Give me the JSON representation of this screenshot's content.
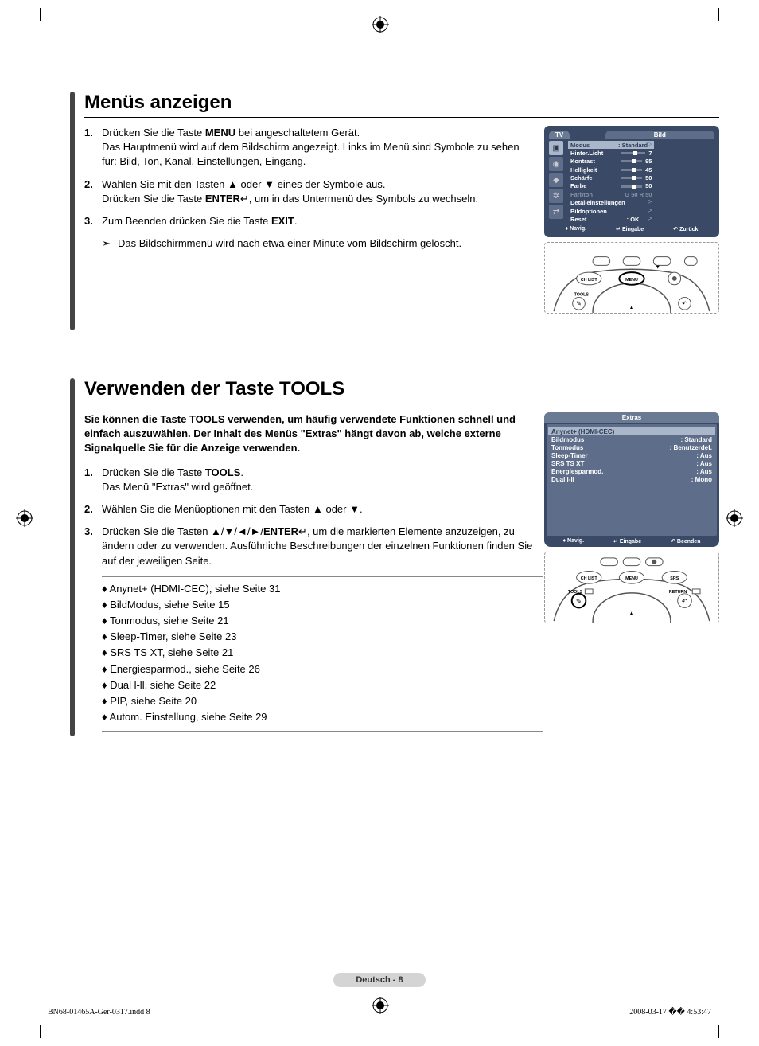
{
  "section1": {
    "title": "Menüs anzeigen",
    "steps": [
      {
        "num": "1.",
        "text": "Drücken Sie die Taste <b>MENU</b> bei angeschaltetem Gerät.<br>Das Hauptmenü wird auf dem Bildschirm angezeigt. Links im Menü sind Symbole zu sehen für: Bild, Ton, Kanal, Einstellungen, Eingang."
      },
      {
        "num": "2.",
        "text": "Wählen Sie mit den Tasten ▲ oder ▼ eines der Symbole aus.<br>Drücken Sie die Taste <b>ENTER</b>↵, um in das Untermenü des Symbols zu wechseln."
      },
      {
        "num": "3.",
        "text": "Zum Beenden drücken Sie die Taste <b>EXIT</b>."
      }
    ],
    "note": "Das Bildschirmmenü wird nach etwa einer Minute vom Bildschirm gelöscht.",
    "osd": {
      "tab_left": "TV",
      "tab_right": "Bild",
      "rows": [
        {
          "label": "Modus",
          "value": ": Standard",
          "selected": true,
          "arrow": true
        },
        {
          "label": "Hinter.Licht",
          "slider": true,
          "value": "7"
        },
        {
          "label": "Kontrast",
          "slider": true,
          "value": "95"
        },
        {
          "label": "Helligkeit",
          "slider": true,
          "value": "45"
        },
        {
          "label": "Schärfe",
          "slider": true,
          "value": "50"
        },
        {
          "label": "Farbe",
          "slider": true,
          "value": "50"
        },
        {
          "label": "Farbton",
          "value": "G 50             R 50",
          "dim": true
        },
        {
          "label": "Detaileinstellungen",
          "value": "",
          "arrow": true
        },
        {
          "label": "Bildoptionen",
          "value": "",
          "arrow": true
        },
        {
          "label": "Reset",
          "value": ": OK",
          "arrow": true
        }
      ],
      "footer": {
        "nav": "Navig.",
        "enter": "Eingabe",
        "back": "Zurück"
      }
    }
  },
  "section2": {
    "title": "Verwenden der Taste TOOLS",
    "intro": "Sie können die Taste TOOLS verwenden, um häufig verwendete Funktionen schnell und einfach auszuwählen. Der Inhalt des Menüs \"Extras\" hängt davon ab, welche externe Signalquelle Sie für die Anzeige verwenden.",
    "steps": [
      {
        "num": "1.",
        "text": "Drücken Sie die Taste <b>TOOLS</b>.<br>Das Menü \"Extras\" wird geöffnet."
      },
      {
        "num": "2.",
        "text": "Wählen Sie die Menüoptionen mit den Tasten ▲ oder ▼."
      },
      {
        "num": "3.",
        "text": "Drücken Sie die Tasten ▲/▼/◄/►/<b>ENTER</b>↵, um die markierten Elemente anzuzeigen, zu ändern oder zu verwenden. Ausführliche Beschreibungen der einzelnen Funktionen finden Sie auf der jeweiligen Seite."
      }
    ],
    "sublist": [
      "♦ Anynet+ (HDMI-CEC), siehe Seite 31",
      "♦ BildModus, siehe Seite 15",
      "♦ Tonmodus, siehe Seite 21",
      "♦ Sleep-Timer, siehe Seite 23",
      "♦ SRS TS XT, siehe Seite 21",
      "♦ Energiesparmod., siehe Seite 26",
      "♦ Dual l-ll, siehe Seite 22",
      "♦ PIP, siehe Seite 20",
      "♦ Autom. Einstellung, siehe Seite 29"
    ],
    "osd": {
      "title": "Extras",
      "rows": [
        {
          "label": "Anynet+ (HDMI-CEC)",
          "value": "",
          "selected": true
        },
        {
          "label": "Bildmodus",
          "value": ": Standard"
        },
        {
          "label": "Tonmodus",
          "value": ": Benutzerdef."
        },
        {
          "label": "Sleep-Timer",
          "value": ": Aus"
        },
        {
          "label": "SRS TS XT",
          "value": ": Aus"
        },
        {
          "label": "Energiesparmod.",
          "value": ": Aus"
        },
        {
          "label": "Dual l-ll",
          "value": ": Mono"
        }
      ],
      "footer": {
        "nav": "Navig.",
        "enter": "Eingabe",
        "back": "Beenden"
      }
    },
    "remote_labels": {
      "chlist": "CH LIST",
      "menu": "MENU",
      "srs": "SRS",
      "tools": "TOOLS",
      "return": "RETURN"
    }
  },
  "remote1_labels": {
    "chlist": "CH LIST",
    "menu": "MENU",
    "tools": "TOOLS"
  },
  "page_num": "Deutsch - 8",
  "footer": {
    "file": "BN68-01465A-Ger-0317.indd   8",
    "date": "2008-03-17   �� 4:53:47"
  }
}
